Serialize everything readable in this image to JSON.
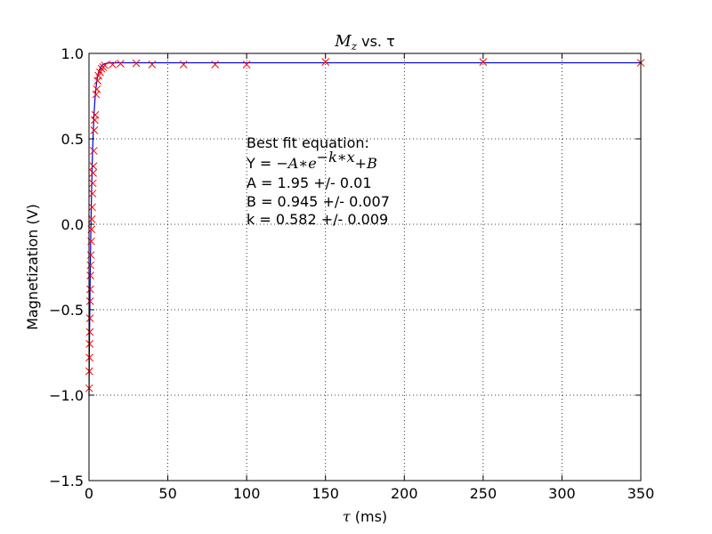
{
  "chart_data": {
    "type": "scatter",
    "title_main": "M",
    "title_sub": "z",
    "title_rest": " vs. τ",
    "xlabel_sym": "τ",
    "xlabel_unit": " (ms)",
    "ylabel": "Magnetization (V)",
    "xlim": [
      0,
      350
    ],
    "ylim": [
      -1.5,
      1.0
    ],
    "xticks": [
      0,
      50,
      100,
      150,
      200,
      250,
      300,
      350
    ],
    "xtick_labels": [
      "0",
      "50",
      "100",
      "150",
      "200",
      "250",
      "300",
      "350"
    ],
    "yticks": [
      -1.5,
      -1.0,
      -0.5,
      0.0,
      0.5,
      1.0
    ],
    "ytick_labels": [
      "−1.5",
      "−1.0",
      "−0.5",
      "0.0",
      "0.5",
      "1.0"
    ],
    "grid": true,
    "marker_color": "#ff0000",
    "fit_color": "#0000cc",
    "fit": {
      "A": 1.95,
      "B": 0.945,
      "k": 0.582
    },
    "points": [
      {
        "x": 0.1,
        "y": -0.96
      },
      {
        "x": 0.2,
        "y": -0.86
      },
      {
        "x": 0.3,
        "y": -0.78
      },
      {
        "x": 0.4,
        "y": -0.7
      },
      {
        "x": 0.5,
        "y": -0.63
      },
      {
        "x": 0.6,
        "y": -0.55
      },
      {
        "x": 0.7,
        "y": -0.45
      },
      {
        "x": 0.8,
        "y": -0.38
      },
      {
        "x": 0.9,
        "y": -0.3
      },
      {
        "x": 1.0,
        "y": -0.24
      },
      {
        "x": 1.2,
        "y": -0.18
      },
      {
        "x": 1.4,
        "y": -0.1
      },
      {
        "x": 1.6,
        "y": -0.03
      },
      {
        "x": 1.8,
        "y": 0.03
      },
      {
        "x": 2.0,
        "y": 0.1
      },
      {
        "x": 2.2,
        "y": 0.18
      },
      {
        "x": 2.4,
        "y": 0.24
      },
      {
        "x": 2.6,
        "y": 0.3
      },
      {
        "x": 2.8,
        "y": 0.34
      },
      {
        "x": 3.0,
        "y": 0.43
      },
      {
        "x": 3.3,
        "y": 0.55
      },
      {
        "x": 3.6,
        "y": 0.61
      },
      {
        "x": 4.0,
        "y": 0.64
      },
      {
        "x": 4.5,
        "y": 0.76
      },
      {
        "x": 5.0,
        "y": 0.79
      },
      {
        "x": 5.5,
        "y": 0.84
      },
      {
        "x": 6.0,
        "y": 0.87
      },
      {
        "x": 7.0,
        "y": 0.89
      },
      {
        "x": 8.0,
        "y": 0.91
      },
      {
        "x": 9.0,
        "y": 0.92
      },
      {
        "x": 10.0,
        "y": 0.93
      },
      {
        "x": 15.0,
        "y": 0.935
      },
      {
        "x": 20.0,
        "y": 0.94
      },
      {
        "x": 30.0,
        "y": 0.942
      },
      {
        "x": 40.0,
        "y": 0.935
      },
      {
        "x": 60.0,
        "y": 0.935
      },
      {
        "x": 80.0,
        "y": 0.935
      },
      {
        "x": 100.0,
        "y": 0.935
      },
      {
        "x": 150.0,
        "y": 0.95
      },
      {
        "x": 250.0,
        "y": 0.95
      },
      {
        "x": 350.0,
        "y": 0.945
      }
    ],
    "annotation": {
      "line1": "Best fit equation:",
      "line2_prefix": "Y = ",
      "line2_math": "−A∗e",
      "line2_exp": "−k∗x",
      "line2_tail": "+B",
      "line3": "A = 1.95 +/- 0.01",
      "line4": "B = 0.945 +/- 0.007",
      "line5": "k = 0.582 +/- 0.009"
    }
  }
}
